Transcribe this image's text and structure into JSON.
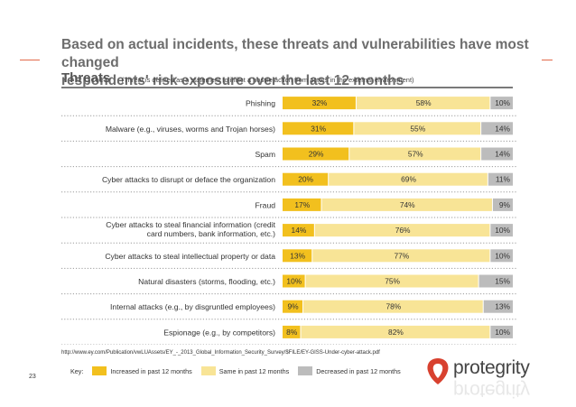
{
  "page": {
    "title_line1": "Based on actual incidents, these threats and vulnerabilities have most changed",
    "title_line2": "respondents' risk exposure over the last 12 months",
    "heading": "Threats",
    "heading_note": "(Threat is defined as a statement to inflict a hostile action from actors in the external environment)",
    "source": "http://www.ey.com/Publication/vwLUAssets/EY_-_2013_Global_Information_Security_Survey/$FILE/EY-GISS-Under-cyber-attack.pdf",
    "page_number": "23",
    "key_label": "Key:",
    "brand": "protegrity"
  },
  "colors": {
    "increased": "#f2c01e",
    "same": "#f8e496",
    "decreased": "#bcbcbc",
    "accent": "#e36a4a",
    "logo_mark": "#d8412f"
  },
  "chart_data": {
    "type": "bar",
    "stacked": true,
    "orientation": "horizontal",
    "title": "Threats",
    "categories": [
      [
        "Phishing"
      ],
      [
        "Malware (e.g., viruses, worms and Trojan horses)"
      ],
      [
        "Spam"
      ],
      [
        "Cyber attacks to disrupt or deface the organization"
      ],
      [
        "Fraud"
      ],
      [
        "Cyber attacks to steal financial information (credit",
        "card numbers, bank information, etc.)"
      ],
      [
        "Cyber attacks to steal intellectual property or data"
      ],
      [
        "Natural disasters (storms, flooding, etc.)"
      ],
      [
        "Internal attacks (e.g., by disgruntled employees)"
      ],
      [
        "Espionage (e.g., by competitors)"
      ]
    ],
    "series": [
      {
        "name": "Increased in past 12 months",
        "color_key": "increased",
        "values": [
          32,
          31,
          29,
          20,
          17,
          14,
          13,
          10,
          9,
          8
        ]
      },
      {
        "name": "Same in past 12 months",
        "color_key": "same",
        "values": [
          58,
          55,
          57,
          69,
          74,
          76,
          77,
          75,
          78,
          82
        ]
      },
      {
        "name": "Decreased in past 12 months",
        "color_key": "decreased",
        "values": [
          10,
          14,
          14,
          11,
          9,
          10,
          10,
          15,
          13,
          10
        ]
      }
    ],
    "value_suffix": "%",
    "xlim": [
      0,
      100
    ],
    "legend": "bottom"
  }
}
